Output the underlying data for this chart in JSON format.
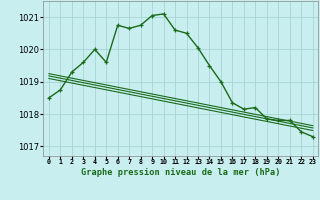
{
  "title": "Graphe pression niveau de la mer (hPa)",
  "background_color": "#c8eef0",
  "grid_color": "#a8d4d4",
  "line_color": "#1a6b1a",
  "x_labels": [
    "0",
    "1",
    "2",
    "3",
    "4",
    "5",
    "6",
    "7",
    "8",
    "9",
    "10",
    "11",
    "12",
    "13",
    "14",
    "15",
    "16",
    "17",
    "18",
    "19",
    "20",
    "21",
    "22",
    "23"
  ],
  "ylim": [
    1016.7,
    1021.5
  ],
  "yticks": [
    1017,
    1018,
    1019,
    1020,
    1021
  ],
  "main_series": [
    1018.5,
    1018.75,
    1019.3,
    1019.6,
    1020.0,
    1019.6,
    1020.75,
    1020.65,
    1020.75,
    1021.05,
    1021.1,
    1020.6,
    1020.5,
    1020.05,
    1019.5,
    1019.0,
    1018.35,
    1018.15,
    1018.2,
    1017.85,
    1017.8,
    1017.8,
    1017.45,
    1017.3
  ],
  "flat_series1": [
    1019.25,
    1019.18,
    1019.11,
    1019.04,
    1018.97,
    1018.9,
    1018.83,
    1018.76,
    1018.69,
    1018.62,
    1018.55,
    1018.48,
    1018.41,
    1018.34,
    1018.27,
    1018.2,
    1018.13,
    1018.06,
    1017.99,
    1017.92,
    1017.85,
    1017.78,
    1017.71,
    1017.64
  ],
  "flat_series2": [
    1019.18,
    1019.11,
    1019.04,
    1018.97,
    1018.9,
    1018.83,
    1018.76,
    1018.69,
    1018.62,
    1018.55,
    1018.48,
    1018.41,
    1018.34,
    1018.27,
    1018.2,
    1018.13,
    1018.06,
    1017.99,
    1017.92,
    1017.85,
    1017.78,
    1017.71,
    1017.64,
    1017.57
  ],
  "flat_series3": [
    1019.1,
    1019.03,
    1018.96,
    1018.89,
    1018.82,
    1018.75,
    1018.68,
    1018.61,
    1018.54,
    1018.47,
    1018.4,
    1018.33,
    1018.26,
    1018.19,
    1018.12,
    1018.05,
    1017.98,
    1017.91,
    1017.84,
    1017.77,
    1017.7,
    1017.63,
    1017.56,
    1017.49
  ]
}
